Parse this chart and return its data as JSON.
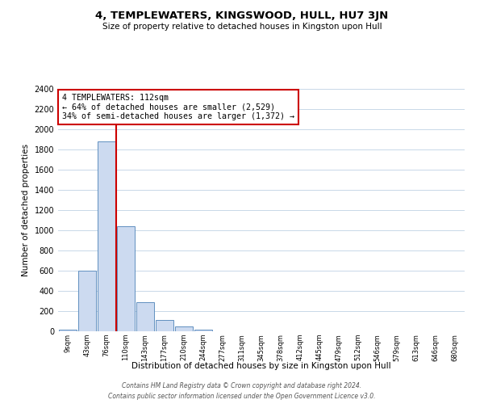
{
  "title": "4, TEMPLEWATERS, KINGSWOOD, HULL, HU7 3JN",
  "subtitle": "Size of property relative to detached houses in Kingston upon Hull",
  "xlabel": "Distribution of detached houses by size in Kingston upon Hull",
  "ylabel": "Number of detached properties",
  "bar_labels": [
    "9sqm",
    "43sqm",
    "76sqm",
    "110sqm",
    "143sqm",
    "177sqm",
    "210sqm",
    "244sqm",
    "277sqm",
    "311sqm",
    "345sqm",
    "378sqm",
    "412sqm",
    "445sqm",
    "479sqm",
    "512sqm",
    "546sqm",
    "579sqm",
    "613sqm",
    "646sqm",
    "680sqm"
  ],
  "bar_values": [
    20,
    600,
    1880,
    1040,
    290,
    110,
    45,
    20,
    0,
    0,
    0,
    0,
    0,
    0,
    0,
    0,
    0,
    0,
    0,
    0,
    0
  ],
  "bar_color": "#ccdaf0",
  "bar_edge_color": "#6090c0",
  "highlight_bar_index": 3,
  "highlight_color": "#cc0000",
  "annotation_title": "4 TEMPLEWATERS: 112sqm",
  "annotation_line1": "← 64% of detached houses are smaller (2,529)",
  "annotation_line2": "34% of semi-detached houses are larger (1,372) →",
  "annotation_box_color": "#ffffff",
  "annotation_box_edge": "#cc0000",
  "ylim": [
    0,
    2400
  ],
  "yticks": [
    0,
    200,
    400,
    600,
    800,
    1000,
    1200,
    1400,
    1600,
    1800,
    2000,
    2200,
    2400
  ],
  "footer_line1": "Contains HM Land Registry data © Crown copyright and database right 2024.",
  "footer_line2": "Contains public sector information licensed under the Open Government Licence v3.0.",
  "background_color": "#ffffff",
  "grid_color": "#c8d8e8"
}
